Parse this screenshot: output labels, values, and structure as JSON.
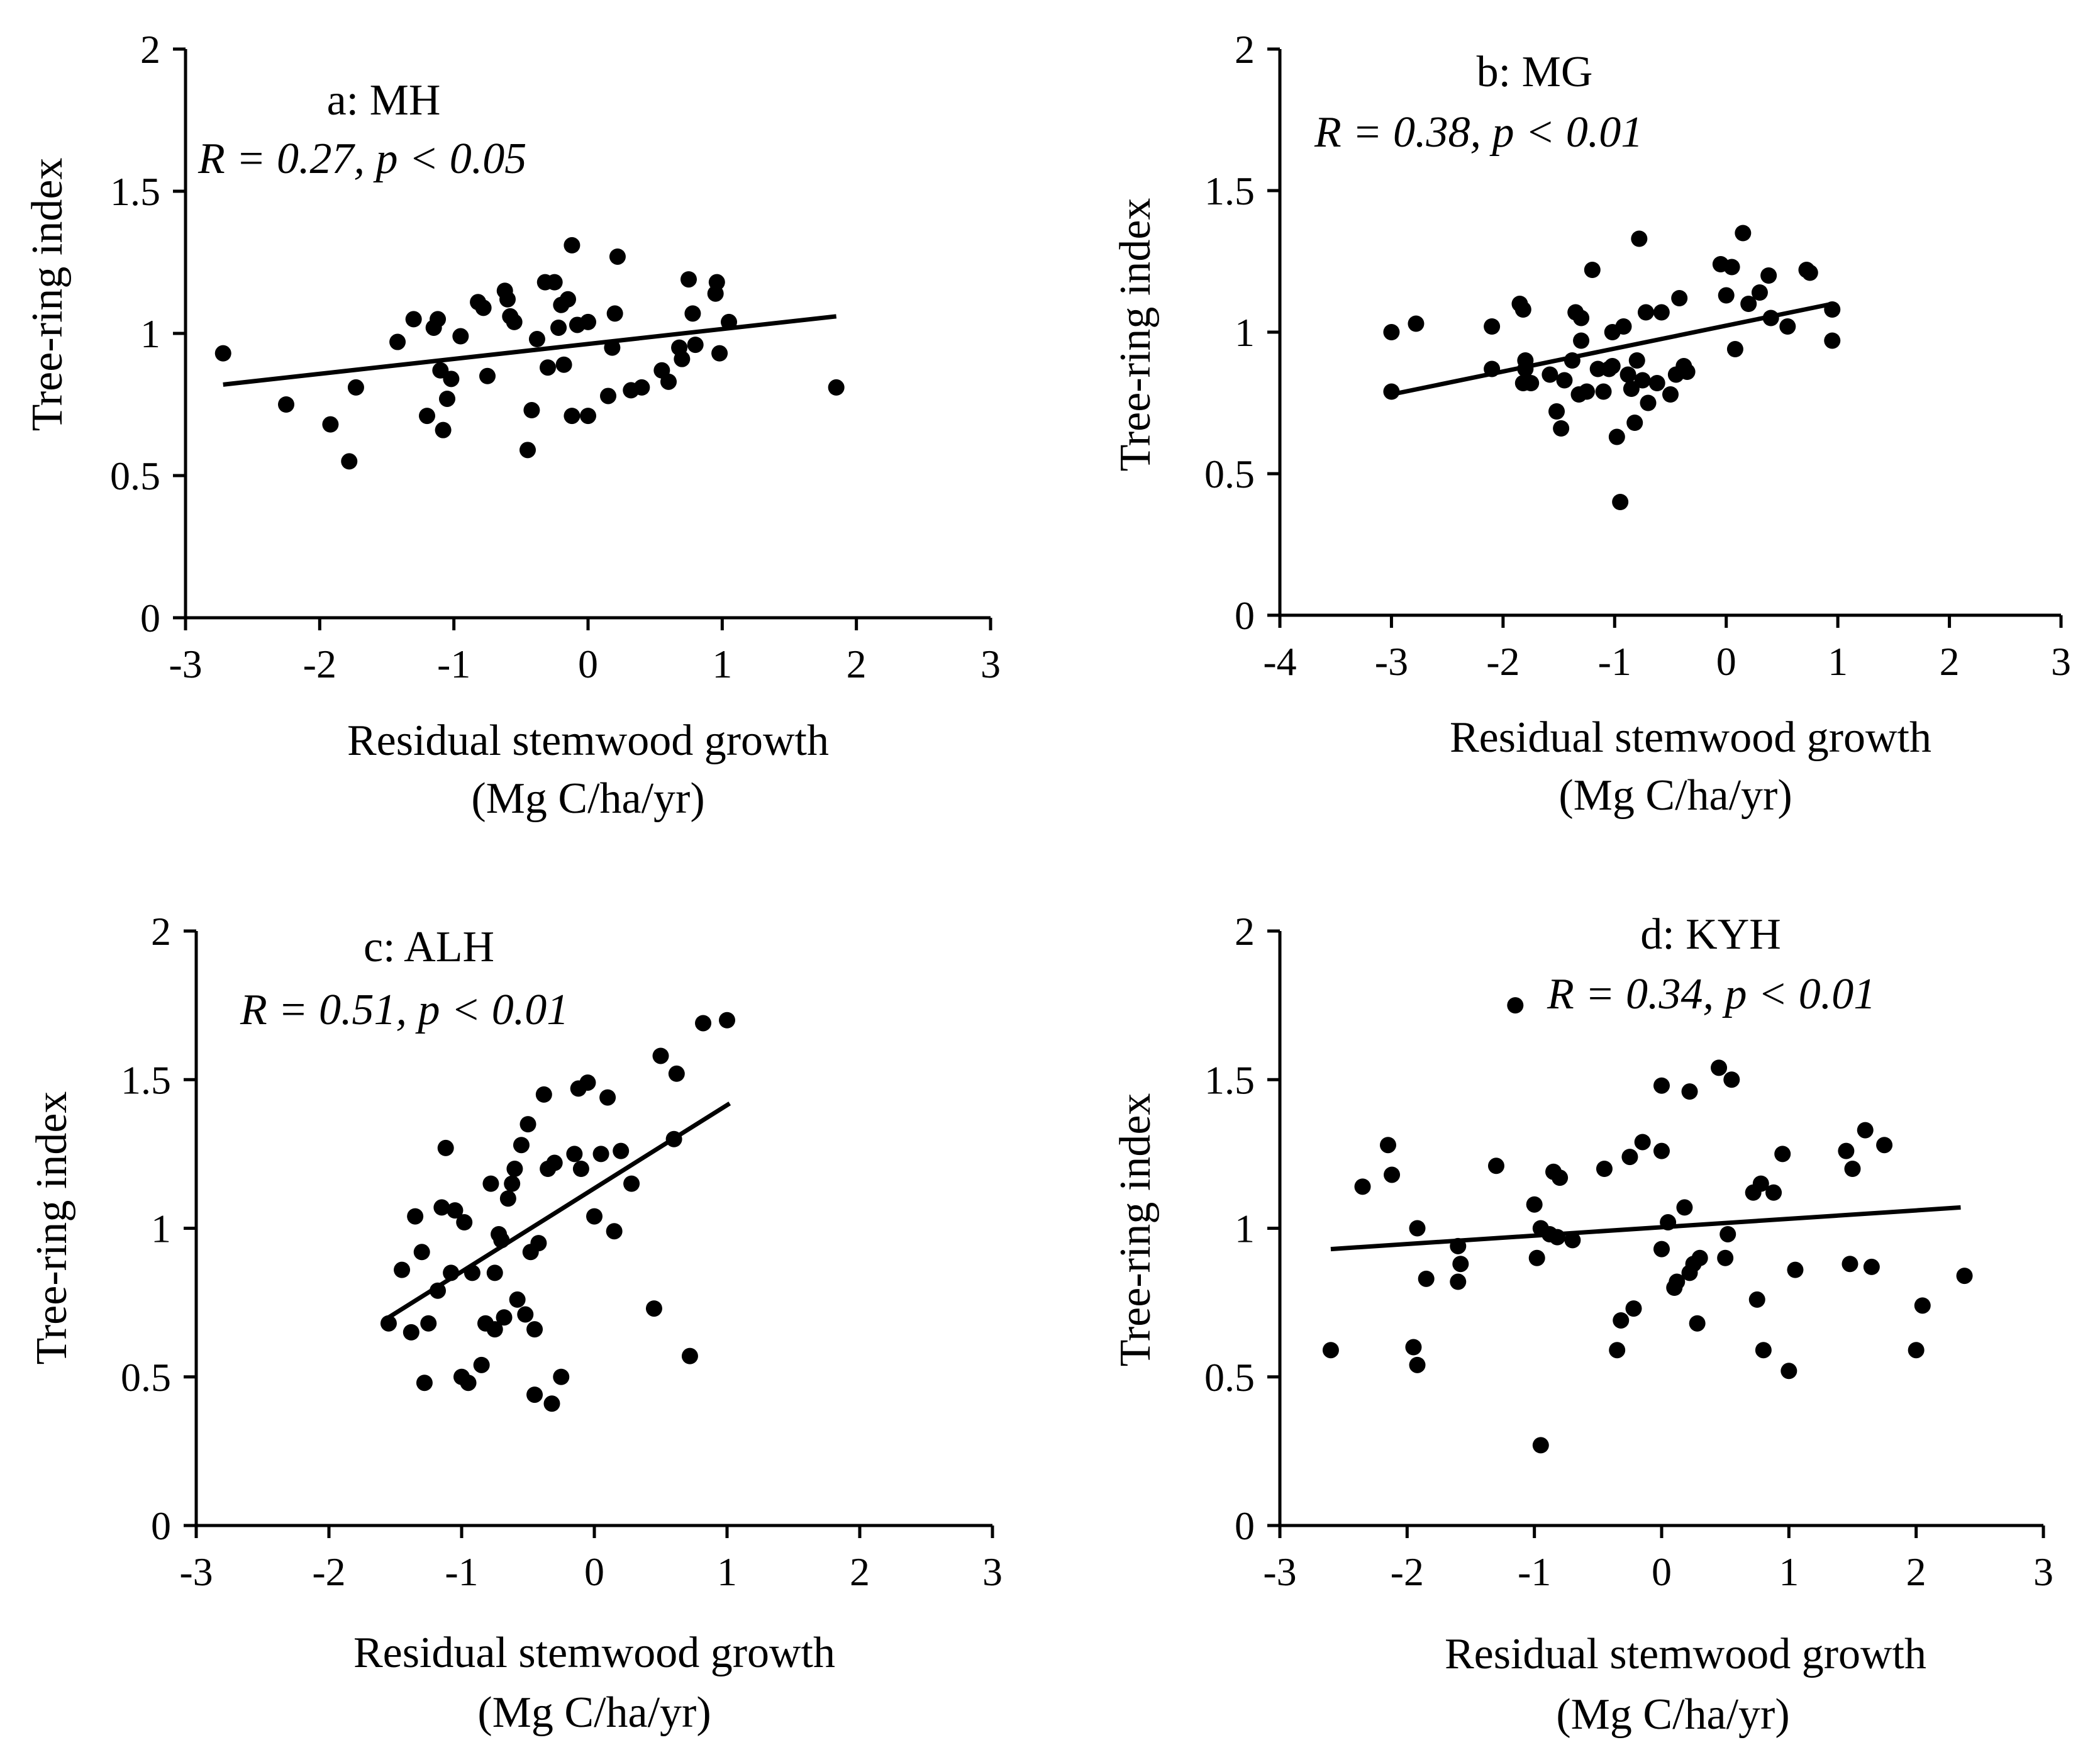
{
  "chart_data": [
    {
      "type": "scatter",
      "title": "a: MH",
      "annotation": "R = 0.27, p < 0.05",
      "xlabel": "Residual stemwood growth",
      "xlabel_unit": "(Mg C/ha/yr)",
      "ylabel": "Tree-ring index",
      "xlim": [
        -3,
        3
      ],
      "ylim": [
        0,
        2
      ],
      "xticks": [
        "-3",
        "-2",
        "-1",
        "0",
        "1",
        "2",
        "3"
      ],
      "yticks": [
        "0",
        "0.5",
        "1",
        "1.5",
        "2"
      ],
      "trendline": {
        "x": [
          -2.72,
          1.85
        ],
        "y": [
          0.82,
          1.06
        ]
      },
      "x": [
        -2.72,
        -2.25,
        -1.92,
        -1.78,
        -1.73,
        -1.42,
        -1.3,
        -1.2,
        -1.15,
        -1.12,
        -1.1,
        -1.08,
        -1.05,
        -1.02,
        -0.95,
        -0.82,
        -0.78,
        -0.75,
        -0.62,
        -0.6,
        -0.58,
        -0.55,
        -0.45,
        -0.42,
        -0.38,
        -0.32,
        -0.3,
        -0.25,
        -0.22,
        -0.2,
        -0.18,
        -0.15,
        -0.12,
        -0.12,
        -0.08,
        0.0,
        0.0,
        0.15,
        0.18,
        0.2,
        0.22,
        0.32,
        0.4,
        0.55,
        0.6,
        0.68,
        0.7,
        0.75,
        0.78,
        0.8,
        0.95,
        0.96,
        0.98,
        1.05,
        1.85
      ],
      "y": [
        0.93,
        0.75,
        0.68,
        0.55,
        0.81,
        0.97,
        1.05,
        0.71,
        1.02,
        1.05,
        0.87,
        0.66,
        0.77,
        0.84,
        0.99,
        1.11,
        1.09,
        0.85,
        1.15,
        1.12,
        1.06,
        1.04,
        0.59,
        0.73,
        0.98,
        1.18,
        0.88,
        1.18,
        1.02,
        1.1,
        0.89,
        1.12,
        1.31,
        0.71,
        1.03,
        1.04,
        0.71,
        0.78,
        0.95,
        1.07,
        1.27,
        0.8,
        0.81,
        0.87,
        0.83,
        0.95,
        0.91,
        1.19,
        1.07,
        0.96,
        1.14,
        1.18,
        0.93,
        1.04,
        0.81
      ]
    },
    {
      "type": "scatter",
      "title": "b: MG",
      "annotation": "R = 0.38, p < 0.01",
      "xlabel": "Residual stemwood growth",
      "xlabel_unit": "(Mg C/ha/yr)",
      "ylabel": "Tree-ring index",
      "xlim": [
        -4,
        3
      ],
      "ylim": [
        0,
        2
      ],
      "xticks": [
        "-4",
        "-3",
        "-2",
        "-1",
        "0",
        "1",
        "2",
        "3"
      ],
      "yticks": [
        "0",
        "0.5",
        "1",
        "1.5",
        "2"
      ],
      "trendline": {
        "x": [
          -3.0,
          0.95
        ],
        "y": [
          0.78,
          1.1
        ]
      },
      "x": [
        -3.0,
        -3.0,
        -2.78,
        -2.1,
        -2.1,
        -1.85,
        -1.82,
        -1.8,
        -1.8,
        -1.82,
        -1.75,
        -1.58,
        -1.52,
        -1.48,
        -1.45,
        -1.38,
        -1.35,
        -1.32,
        -1.3,
        -1.3,
        -1.25,
        -1.2,
        -1.15,
        -1.1,
        -1.05,
        -1.02,
        -1.02,
        -0.98,
        -0.95,
        -0.92,
        -0.88,
        -0.85,
        -0.82,
        -0.8,
        -0.78,
        -0.75,
        -0.72,
        -0.7,
        -0.62,
        -0.58,
        -0.5,
        -0.45,
        -0.42,
        -0.38,
        -0.35,
        -0.05,
        0.0,
        0.05,
        0.08,
        0.15,
        0.2,
        0.3,
        0.38,
        0.4,
        0.55,
        0.72,
        0.75,
        0.95,
        0.95
      ],
      "y": [
        0.79,
        1.0,
        1.03,
        1.02,
        0.87,
        1.1,
        1.08,
        0.87,
        0.9,
        0.82,
        0.82,
        0.85,
        0.72,
        0.66,
        0.83,
        0.9,
        1.07,
        0.78,
        1.05,
        0.97,
        0.79,
        1.22,
        0.87,
        0.79,
        0.87,
        1.0,
        0.88,
        0.63,
        0.4,
        1.02,
        0.85,
        0.8,
        0.68,
        0.9,
        1.33,
        0.83,
        1.07,
        0.75,
        0.82,
        1.07,
        0.78,
        0.85,
        1.12,
        0.88,
        0.86,
        1.24,
        1.13,
        1.23,
        0.94,
        1.35,
        1.1,
        1.14,
        1.2,
        1.05,
        1.02,
        1.22,
        1.21,
        1.08,
        0.97
      ]
    },
    {
      "type": "scatter",
      "title": "c: ALH",
      "annotation": "R = 0.51, p < 0.01",
      "xlabel": "Residual stemwood growth",
      "xlabel_unit": "(Mg C/ha/yr)",
      "ylabel": "Tree-ring index",
      "xlim": [
        -3,
        3
      ],
      "ylim": [
        0,
        2
      ],
      "xticks": [
        "-3",
        "-2",
        "-1",
        "0",
        "1",
        "2",
        "3"
      ],
      "yticks": [
        "0",
        "0.5",
        "1",
        "1.5",
        "2"
      ],
      "trendline": {
        "x": [
          -1.55,
          1.02
        ],
        "y": [
          0.7,
          1.42
        ]
      },
      "x": [
        -1.55,
        -1.45,
        -1.38,
        -1.35,
        -1.3,
        -1.28,
        -1.25,
        -1.18,
        -1.15,
        -1.12,
        -1.08,
        -1.05,
        -1.0,
        -0.98,
        -0.95,
        -0.92,
        -0.85,
        -0.82,
        -0.78,
        -0.75,
        -0.75,
        -0.72,
        -0.7,
        -0.68,
        -0.65,
        -0.62,
        -0.6,
        -0.58,
        -0.55,
        -0.52,
        -0.5,
        -0.48,
        -0.45,
        -0.45,
        -0.42,
        -0.38,
        -0.35,
        -0.32,
        -0.3,
        -0.25,
        -0.15,
        -0.12,
        -0.1,
        -0.05,
        0.0,
        0.05,
        0.1,
        0.15,
        0.2,
        0.28,
        0.45,
        0.5,
        0.6,
        0.62,
        0.72,
        0.82,
        1.0
      ],
      "y": [
        0.68,
        0.86,
        0.65,
        1.04,
        0.92,
        0.48,
        0.68,
        0.79,
        1.07,
        1.27,
        0.85,
        1.06,
        0.5,
        1.02,
        0.48,
        0.85,
        0.54,
        0.68,
        1.15,
        0.85,
        0.66,
        0.98,
        0.96,
        0.7,
        1.1,
        1.15,
        1.2,
        0.76,
        1.28,
        0.71,
        1.35,
        0.92,
        0.66,
        0.44,
        0.95,
        1.45,
        1.2,
        0.41,
        1.22,
        0.5,
        1.25,
        1.47,
        1.2,
        1.49,
        1.04,
        1.25,
        1.44,
        0.99,
        1.26,
        1.15,
        0.73,
        1.58,
        1.3,
        1.52,
        0.57,
        1.69,
        1.7
      ]
    },
    {
      "type": "scatter",
      "title": "d: KYH",
      "annotation": "R = 0.34, p < 0.01",
      "xlabel": "Residual stemwood growth",
      "xlabel_unit": "(Mg C/ha/yr)",
      "ylabel": "Tree-ring index",
      "xlim": [
        -3,
        3
      ],
      "ylim": [
        0,
        2
      ],
      "xticks": [
        "-3",
        "-2",
        "-1",
        "0",
        "1",
        "2",
        "3"
      ],
      "yticks": [
        "0",
        "0.5",
        "1",
        "1.5",
        "2"
      ],
      "trendline": {
        "x": [
          -2.6,
          2.35
        ],
        "y": [
          0.93,
          1.07
        ]
      },
      "x": [
        -2.6,
        -2.35,
        -2.15,
        -2.12,
        -1.95,
        -1.92,
        -1.92,
        -1.85,
        -1.6,
        -1.58,
        -1.6,
        -1.3,
        -1.15,
        -1.0,
        -0.98,
        -0.95,
        -0.95,
        -0.88,
        -0.85,
        -0.82,
        -0.8,
        -0.7,
        -0.45,
        -0.35,
        -0.32,
        -0.25,
        -0.22,
        -0.15,
        0.0,
        0.0,
        0.0,
        0.05,
        0.1,
        0.12,
        0.18,
        0.22,
        0.22,
        0.25,
        0.28,
        0.3,
        0.45,
        0.5,
        0.52,
        0.55,
        0.72,
        0.75,
        0.78,
        0.8,
        0.88,
        0.95,
        1.0,
        1.05,
        1.45,
        1.48,
        1.5,
        1.6,
        1.65,
        1.75,
        2.0,
        2.05,
        2.38
      ],
      "y": [
        0.59,
        1.14,
        1.28,
        1.18,
        0.6,
        1.0,
        0.54,
        0.83,
        0.94,
        0.88,
        0.82,
        1.21,
        1.75,
        1.08,
        0.9,
        0.27,
        1.0,
        0.98,
        1.19,
        0.97,
        1.17,
        0.96,
        1.2,
        0.59,
        0.69,
        1.24,
        0.73,
        1.29,
        1.48,
        1.26,
        0.93,
        1.02,
        0.8,
        0.82,
        1.07,
        1.46,
        0.85,
        0.88,
        0.68,
        0.9,
        1.54,
        0.9,
        0.98,
        1.5,
        1.12,
        0.76,
        1.15,
        0.59,
        1.12,
        1.25,
        0.52,
        0.86,
        1.26,
        0.88,
        1.2,
        1.33,
        0.87,
        1.28,
        0.59,
        0.74,
        0.84
      ]
    }
  ]
}
